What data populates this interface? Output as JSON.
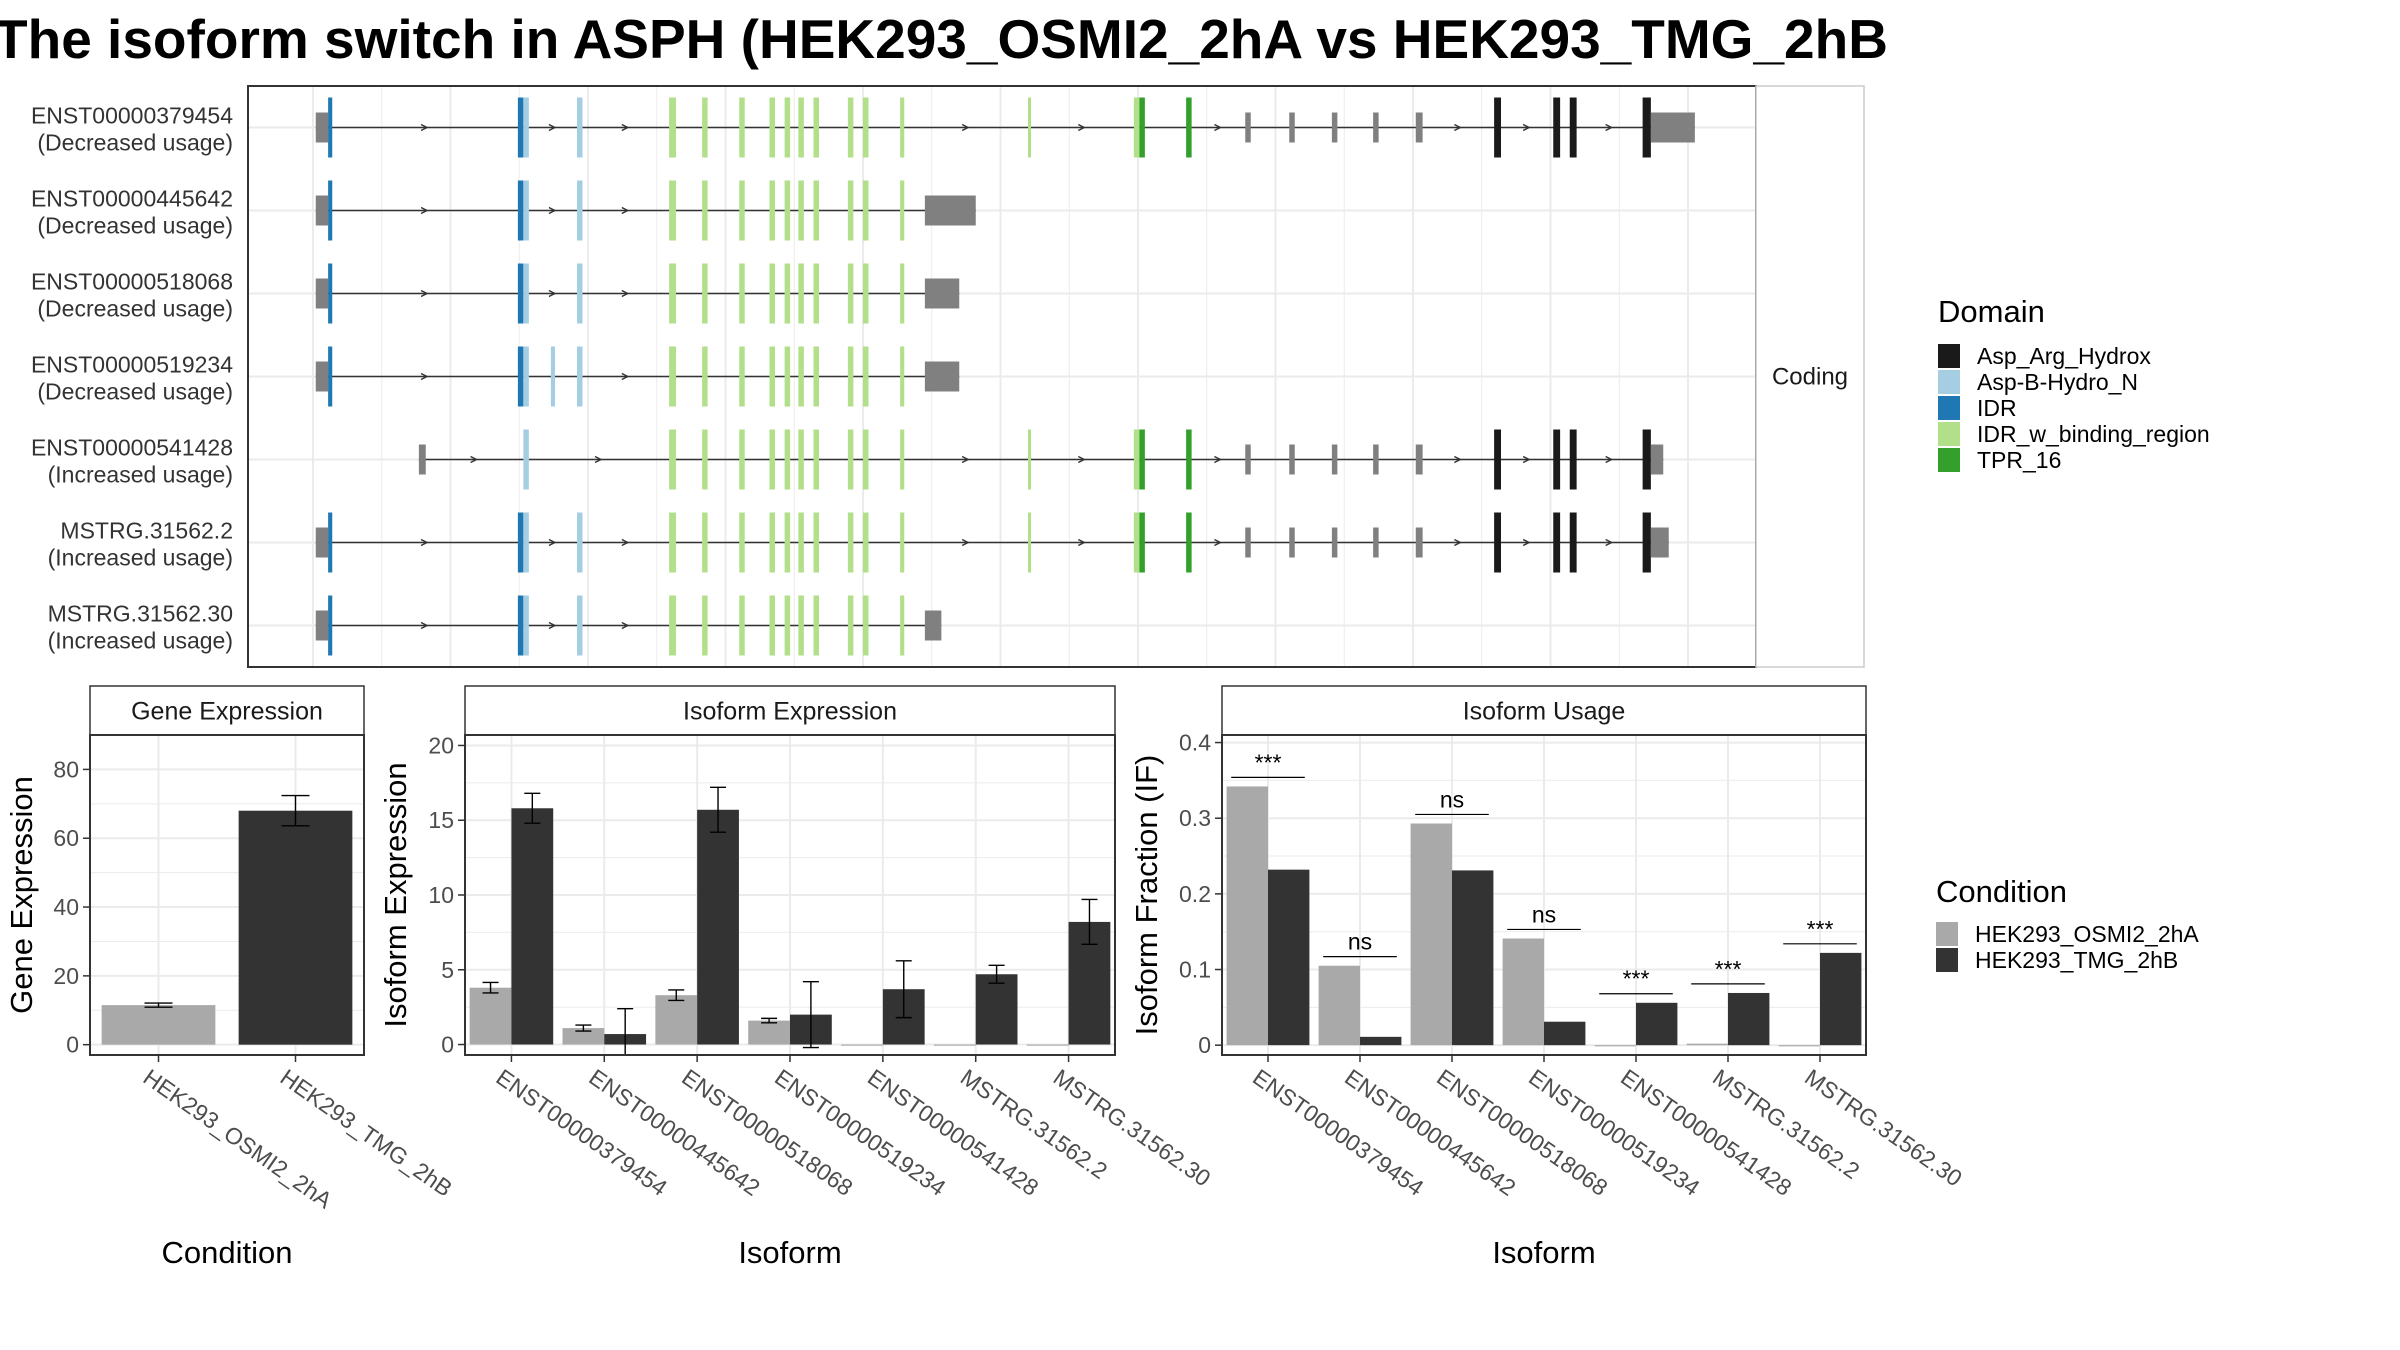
{
  "title": "The isoform switch in ASPH (HEK293_OSMI2_2hA vs HEK293_TMG_2hB",
  "colors": {
    "Asp_Arg_Hydrox": "#1a1a1a",
    "Asp-B-Hydro_N": "#a6cee3",
    "IDR": "#1f78b4",
    "IDR_w_binding_region": "#b2df8a",
    "TPR_16": "#33a02c",
    "noncoding": "#808080",
    "cond_A": "#a9a9a9",
    "cond_B": "#333333",
    "intron": "#333333"
  },
  "structure_panel": {
    "strip_label": "Coding",
    "x_range": [
      0,
      1000
    ],
    "transcripts": [
      {
        "id": "ENST00000379454",
        "usage": "(Decreased usage)",
        "features": [
          [
            2,
            11,
            "noncoding"
          ],
          [
            11,
            14,
            "IDR"
          ],
          [
            149,
            153,
            "IDR"
          ],
          [
            153,
            157,
            "Asp-B-Hydro_N"
          ],
          [
            192,
            196,
            "Asp-B-Hydro_N"
          ],
          [
            259,
            264,
            "IDR_w_binding_region"
          ],
          [
            283,
            287,
            "IDR_w_binding_region"
          ],
          [
            310,
            314,
            "IDR_w_binding_region"
          ],
          [
            332,
            336,
            "IDR_w_binding_region"
          ],
          [
            343,
            347,
            "IDR_w_binding_region"
          ],
          [
            353,
            357,
            "IDR_w_binding_region"
          ],
          [
            364,
            368,
            "IDR_w_binding_region"
          ],
          [
            389,
            393,
            "IDR_w_binding_region"
          ],
          [
            400,
            404,
            "IDR_w_binding_region"
          ],
          [
            427,
            430,
            "IDR_w_binding_region"
          ],
          [
            520,
            522,
            "IDR_w_binding_region"
          ],
          [
            597,
            601,
            "IDR_w_binding_region"
          ],
          [
            601,
            605,
            "TPR_16"
          ],
          [
            635,
            639,
            "TPR_16"
          ],
          [
            678,
            682,
            "noncoding"
          ],
          [
            710,
            714,
            "noncoding"
          ],
          [
            741,
            745,
            "noncoding"
          ],
          [
            771,
            775,
            "noncoding"
          ],
          [
            802,
            807,
            "noncoding"
          ],
          [
            859,
            864,
            "Asp_Arg_Hydrox"
          ],
          [
            902,
            907,
            "Asp_Arg_Hydrox"
          ],
          [
            914,
            919,
            "Asp_Arg_Hydrox"
          ],
          [
            967,
            973,
            "Asp_Arg_Hydrox"
          ],
          [
            973,
            1005,
            "noncoding"
          ]
        ]
      },
      {
        "id": "ENST00000445642",
        "usage": "(Decreased usage)",
        "features": [
          [
            2,
            11,
            "noncoding"
          ],
          [
            11,
            14,
            "IDR"
          ],
          [
            149,
            153,
            "IDR"
          ],
          [
            153,
            157,
            "Asp-B-Hydro_N"
          ],
          [
            192,
            196,
            "Asp-B-Hydro_N"
          ],
          [
            259,
            264,
            "IDR_w_binding_region"
          ],
          [
            283,
            287,
            "IDR_w_binding_region"
          ],
          [
            310,
            314,
            "IDR_w_binding_region"
          ],
          [
            332,
            336,
            "IDR_w_binding_region"
          ],
          [
            343,
            347,
            "IDR_w_binding_region"
          ],
          [
            353,
            357,
            "IDR_w_binding_region"
          ],
          [
            364,
            368,
            "IDR_w_binding_region"
          ],
          [
            389,
            393,
            "IDR_w_binding_region"
          ],
          [
            400,
            404,
            "IDR_w_binding_region"
          ],
          [
            427,
            430,
            "IDR_w_binding_region"
          ],
          [
            445,
            482,
            "noncoding"
          ]
        ]
      },
      {
        "id": "ENST00000518068",
        "usage": "(Decreased usage)",
        "features": [
          [
            2,
            11,
            "noncoding"
          ],
          [
            11,
            14,
            "IDR"
          ],
          [
            149,
            153,
            "IDR"
          ],
          [
            153,
            157,
            "Asp-B-Hydro_N"
          ],
          [
            192,
            196,
            "Asp-B-Hydro_N"
          ],
          [
            259,
            264,
            "IDR_w_binding_region"
          ],
          [
            283,
            287,
            "IDR_w_binding_region"
          ],
          [
            310,
            314,
            "IDR_w_binding_region"
          ],
          [
            332,
            336,
            "IDR_w_binding_region"
          ],
          [
            343,
            347,
            "IDR_w_binding_region"
          ],
          [
            353,
            357,
            "IDR_w_binding_region"
          ],
          [
            364,
            368,
            "IDR_w_binding_region"
          ],
          [
            389,
            393,
            "IDR_w_binding_region"
          ],
          [
            400,
            404,
            "IDR_w_binding_region"
          ],
          [
            427,
            430,
            "IDR_w_binding_region"
          ],
          [
            445,
            470,
            "noncoding"
          ]
        ]
      },
      {
        "id": "ENST00000519234",
        "usage": "(Decreased usage)",
        "features": [
          [
            2,
            11,
            "noncoding"
          ],
          [
            11,
            14,
            "IDR"
          ],
          [
            149,
            153,
            "IDR"
          ],
          [
            153,
            157,
            "Asp-B-Hydro_N"
          ],
          [
            173,
            176,
            "Asp-B-Hydro_N"
          ],
          [
            192,
            196,
            "Asp-B-Hydro_N"
          ],
          [
            259,
            264,
            "IDR_w_binding_region"
          ],
          [
            283,
            287,
            "IDR_w_binding_region"
          ],
          [
            310,
            314,
            "IDR_w_binding_region"
          ],
          [
            332,
            336,
            "IDR_w_binding_region"
          ],
          [
            343,
            347,
            "IDR_w_binding_region"
          ],
          [
            353,
            357,
            "IDR_w_binding_region"
          ],
          [
            364,
            368,
            "IDR_w_binding_region"
          ],
          [
            389,
            393,
            "IDR_w_binding_region"
          ],
          [
            400,
            404,
            "IDR_w_binding_region"
          ],
          [
            427,
            430,
            "IDR_w_binding_region"
          ],
          [
            445,
            470,
            "noncoding"
          ]
        ]
      },
      {
        "id": "ENST00000541428",
        "usage": "(Increased usage)",
        "features": [
          [
            77,
            82,
            "noncoding"
          ],
          [
            153,
            157,
            "Asp-B-Hydro_N"
          ],
          [
            259,
            264,
            "IDR_w_binding_region"
          ],
          [
            283,
            287,
            "IDR_w_binding_region"
          ],
          [
            310,
            314,
            "IDR_w_binding_region"
          ],
          [
            332,
            336,
            "IDR_w_binding_region"
          ],
          [
            343,
            347,
            "IDR_w_binding_region"
          ],
          [
            353,
            357,
            "IDR_w_binding_region"
          ],
          [
            364,
            368,
            "IDR_w_binding_region"
          ],
          [
            389,
            393,
            "IDR_w_binding_region"
          ],
          [
            400,
            404,
            "IDR_w_binding_region"
          ],
          [
            427,
            430,
            "IDR_w_binding_region"
          ],
          [
            520,
            522,
            "IDR_w_binding_region"
          ],
          [
            597,
            601,
            "IDR_w_binding_region"
          ],
          [
            601,
            605,
            "TPR_16"
          ],
          [
            635,
            639,
            "TPR_16"
          ],
          [
            678,
            682,
            "noncoding"
          ],
          [
            710,
            714,
            "noncoding"
          ],
          [
            741,
            745,
            "noncoding"
          ],
          [
            771,
            775,
            "noncoding"
          ],
          [
            802,
            807,
            "noncoding"
          ],
          [
            859,
            864,
            "Asp_Arg_Hydrox"
          ],
          [
            902,
            907,
            "Asp_Arg_Hydrox"
          ],
          [
            914,
            919,
            "Asp_Arg_Hydrox"
          ],
          [
            967,
            973,
            "Asp_Arg_Hydrox"
          ],
          [
            973,
            982,
            "noncoding"
          ]
        ]
      },
      {
        "id": "MSTRG.31562.2",
        "usage": "(Increased usage)",
        "features": [
          [
            2,
            11,
            "noncoding"
          ],
          [
            11,
            14,
            "IDR"
          ],
          [
            149,
            153,
            "IDR"
          ],
          [
            153,
            157,
            "Asp-B-Hydro_N"
          ],
          [
            192,
            196,
            "Asp-B-Hydro_N"
          ],
          [
            259,
            264,
            "IDR_w_binding_region"
          ],
          [
            283,
            287,
            "IDR_w_binding_region"
          ],
          [
            310,
            314,
            "IDR_w_binding_region"
          ],
          [
            332,
            336,
            "IDR_w_binding_region"
          ],
          [
            343,
            347,
            "IDR_w_binding_region"
          ],
          [
            353,
            357,
            "IDR_w_binding_region"
          ],
          [
            364,
            368,
            "IDR_w_binding_region"
          ],
          [
            389,
            393,
            "IDR_w_binding_region"
          ],
          [
            400,
            404,
            "IDR_w_binding_region"
          ],
          [
            427,
            430,
            "IDR_w_binding_region"
          ],
          [
            520,
            522,
            "IDR_w_binding_region"
          ],
          [
            597,
            601,
            "IDR_w_binding_region"
          ],
          [
            601,
            605,
            "TPR_16"
          ],
          [
            635,
            639,
            "TPR_16"
          ],
          [
            678,
            682,
            "noncoding"
          ],
          [
            710,
            714,
            "noncoding"
          ],
          [
            741,
            745,
            "noncoding"
          ],
          [
            771,
            775,
            "noncoding"
          ],
          [
            802,
            807,
            "noncoding"
          ],
          [
            859,
            864,
            "Asp_Arg_Hydrox"
          ],
          [
            902,
            907,
            "Asp_Arg_Hydrox"
          ],
          [
            914,
            919,
            "Asp_Arg_Hydrox"
          ],
          [
            967,
            973,
            "Asp_Arg_Hydrox"
          ],
          [
            973,
            986,
            "noncoding"
          ]
        ]
      },
      {
        "id": "MSTRG.31562.30",
        "usage": "(Increased usage)",
        "features": [
          [
            2,
            11,
            "noncoding"
          ],
          [
            11,
            14,
            "IDR"
          ],
          [
            149,
            153,
            "IDR"
          ],
          [
            153,
            157,
            "Asp-B-Hydro_N"
          ],
          [
            192,
            196,
            "Asp-B-Hydro_N"
          ],
          [
            259,
            264,
            "IDR_w_binding_region"
          ],
          [
            283,
            287,
            "IDR_w_binding_region"
          ],
          [
            310,
            314,
            "IDR_w_binding_region"
          ],
          [
            332,
            336,
            "IDR_w_binding_region"
          ],
          [
            343,
            347,
            "IDR_w_binding_region"
          ],
          [
            353,
            357,
            "IDR_w_binding_region"
          ],
          [
            364,
            368,
            "IDR_w_binding_region"
          ],
          [
            389,
            393,
            "IDR_w_binding_region"
          ],
          [
            400,
            404,
            "IDR_w_binding_region"
          ],
          [
            427,
            430,
            "IDR_w_binding_region"
          ],
          [
            445,
            457,
            "noncoding"
          ]
        ]
      }
    ]
  },
  "domain_legend": {
    "title": "Domain",
    "entries": [
      "Asp_Arg_Hydrox",
      "Asp-B-Hydro_N",
      "IDR",
      "IDR_w_binding_region",
      "TPR_16"
    ]
  },
  "condition_legend": {
    "title": "Condition",
    "entries": [
      "HEK293_OSMI2_2hA",
      "HEK293_TMG_2hB"
    ]
  },
  "chart_data": [
    {
      "type": "bar",
      "title": "Gene Expression",
      "xlabel": "Condition",
      "ylabel": "Gene Expression",
      "ylim": [
        -3,
        90
      ],
      "yticks": [
        0,
        20,
        40,
        60,
        80
      ],
      "categories": [
        "HEK293_OSMI2_2hA",
        "HEK293_TMG_2hB"
      ],
      "series": [
        {
          "name": "HEK293_OSMI2_2hA",
          "values": [
            11.5,
            null
          ],
          "err": [
            0.6,
            null
          ]
        },
        {
          "name": "HEK293_TMG_2hB",
          "values": [
            null,
            68
          ],
          "err": [
            null,
            4.4
          ]
        }
      ]
    },
    {
      "type": "bar",
      "title": "Isoform Expression",
      "xlabel": "Isoform",
      "ylabel": "Isoform Expression",
      "ylim": [
        -0.7,
        20.7
      ],
      "yticks": [
        0,
        5,
        10,
        15,
        20
      ],
      "categories": [
        "ENST00000379454",
        "ENST00000445642",
        "ENST00000518068",
        "ENST00000519234",
        "ENST00000541428",
        "MSTRG.31562.2",
        "MSTRG.31562.30"
      ],
      "series": [
        {
          "name": "HEK293_OSMI2_2hA",
          "values": [
            3.8,
            1.1,
            3.3,
            1.6,
            0,
            0,
            0
          ],
          "err": [
            0.35,
            0.2,
            0.35,
            0.15,
            0,
            0,
            0
          ]
        },
        {
          "name": "HEK293_TMG_2hB",
          "values": [
            15.8,
            0.7,
            15.7,
            2.0,
            3.7,
            4.7,
            8.2
          ],
          "err": [
            1.0,
            1.7,
            1.5,
            2.2,
            1.9,
            0.6,
            1.5
          ]
        }
      ]
    },
    {
      "type": "bar",
      "title": "Isoform Usage",
      "xlabel": "Isoform",
      "ylabel": "Isoform Fraction (IF)",
      "ylim": [
        -0.013,
        0.41
      ],
      "yticks": [
        0.0,
        0.1,
        0.2,
        0.3,
        0.4
      ],
      "categories": [
        "ENST00000379454",
        "ENST00000445642",
        "ENST00000518068",
        "ENST00000519234",
        "ENST00000541428",
        "MSTRG.31562.2",
        "MSTRG.31562.30"
      ],
      "series": [
        {
          "name": "HEK293_OSMI2_2hA",
          "values": [
            0.342,
            0.105,
            0.293,
            0.141,
            0.0,
            0.002,
            0.0
          ]
        },
        {
          "name": "HEK293_TMG_2hB",
          "values": [
            0.232,
            0.011,
            0.231,
            0.031,
            0.056,
            0.069,
            0.122
          ]
        }
      ],
      "significance": [
        "***",
        "ns",
        "ns",
        "ns",
        "***",
        "***",
        "***"
      ]
    }
  ]
}
